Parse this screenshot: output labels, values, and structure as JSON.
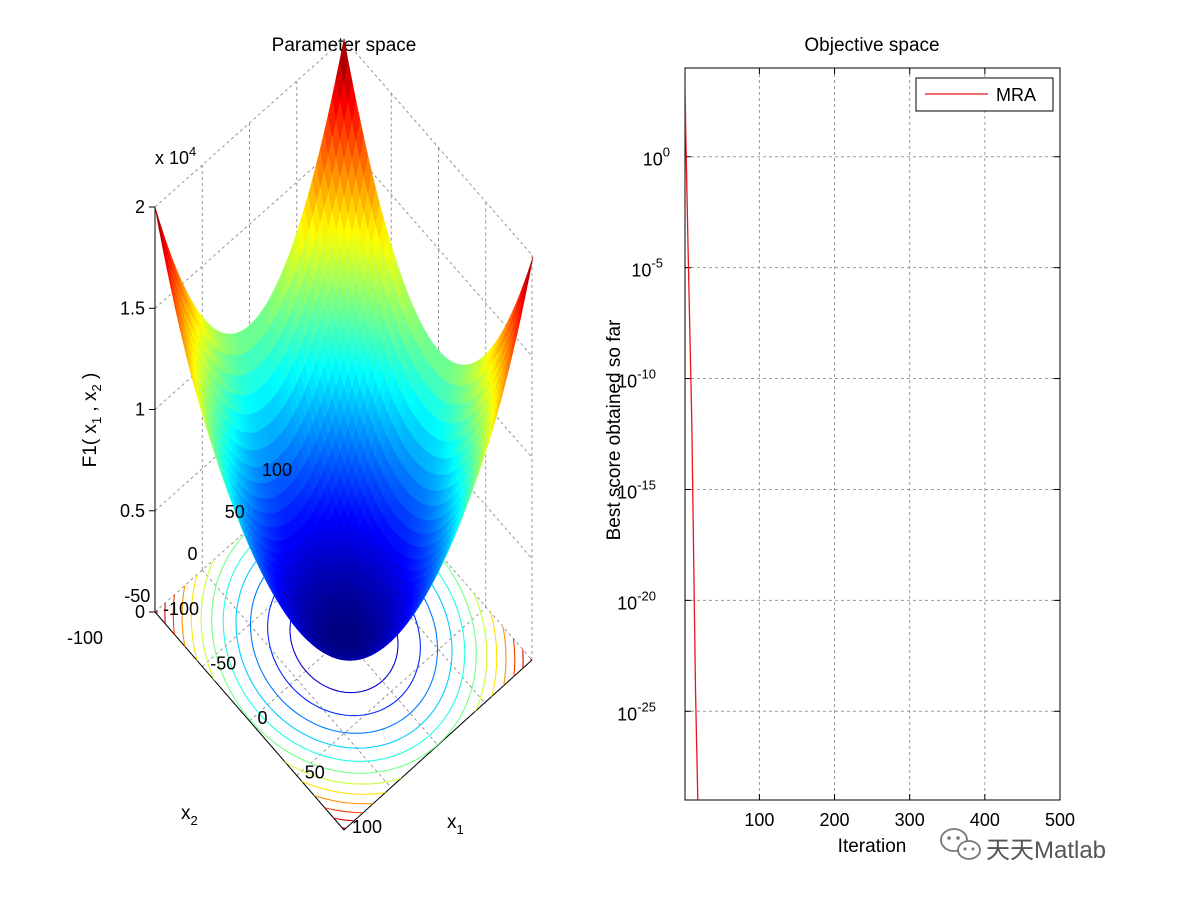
{
  "chart_data": [
    {
      "type": "surface",
      "title": "Parameter space",
      "xlabel": "x",
      "xlabel_sub": "1",
      "ylabel": "x",
      "ylabel_sub": "2",
      "zlabel_parts": {
        "f": "F1( x",
        "s1": "1",
        "mid": " , x",
        "s2": "2",
        "end": " )"
      },
      "z_multiplier": {
        "base": "x 10",
        "exp": "4"
      },
      "x_ticks": [
        "-100",
        "-50",
        "0",
        "50",
        "100"
      ],
      "y_ticks": [
        "-100",
        "-50",
        "0",
        "50",
        "100"
      ],
      "z_ticks": [
        "0",
        "0.5",
        "1",
        "1.5",
        "2"
      ],
      "xlim": [
        -100,
        100
      ],
      "ylim": [
        -100,
        100
      ],
      "zlim": [
        0,
        20000
      ],
      "function": "x1^2 + x2^2",
      "colormap": "jet",
      "contour_levels": 12
    },
    {
      "type": "line",
      "title": "Objective space",
      "xlabel": "Iteration",
      "ylabel": "Best score obtained so far",
      "y_scale": "log",
      "xlim": [
        1,
        500
      ],
      "ylim": [
        1e-29,
        10000.0
      ],
      "x_ticks": [
        "100",
        "200",
        "300",
        "400",
        "500"
      ],
      "y_ticks": [
        {
          "value": 1,
          "base": "10",
          "exp": "0"
        },
        {
          "value": 1e-05,
          "base": "10",
          "exp": "-5"
        },
        {
          "value": 1e-10,
          "base": "10",
          "exp": "-10"
        },
        {
          "value": 1e-15,
          "base": "10",
          "exp": "-15"
        },
        {
          "value": 1e-20,
          "base": "10",
          "exp": "-20"
        },
        {
          "value": 1e-25,
          "base": "10",
          "exp": "-25"
        }
      ],
      "grid": true,
      "legend_position": "top-right",
      "series": [
        {
          "name": "MRA",
          "color": "#e8141b",
          "x": [
            1,
            2,
            5,
            10,
            15,
            18
          ],
          "y": [
            2000,
            10,
            0.0001,
            1e-12,
            1e-24,
            1e-29
          ]
        }
      ]
    }
  ],
  "watermark": {
    "text": "天天Matlab",
    "icon": "wechat-icon"
  }
}
